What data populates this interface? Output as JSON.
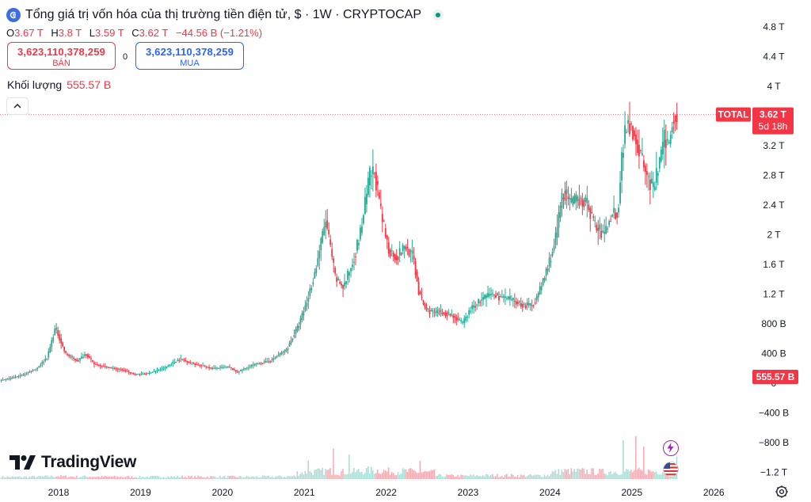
{
  "header": {
    "title": "Tổng giá trị vốn hóa của thị trường tiền điện tử, $ · 1W · CRYPTOCAP",
    "status_color": "#089981"
  },
  "ohlc": {
    "o_label": "O",
    "o_value": "3.67 T",
    "h_label": "H",
    "h_value": "3.8 T",
    "l_label": "L",
    "l_value": "3.59 T",
    "c_label": "C",
    "c_value": "3.62 T",
    "change": "−44.56 B (−1.21%)"
  },
  "trade": {
    "sell_value": "3,623,110,378,259",
    "sell_label": "BÁN",
    "spread": "0",
    "buy_value": "3,623,110,378,259",
    "buy_label": "MUA"
  },
  "volume": {
    "label": "Khối lượng",
    "value": "555.57 B"
  },
  "brand": {
    "name": "TradingView"
  },
  "colors": {
    "up": "#22ab94",
    "down": "#f23645",
    "vol_up": "#a7dcd3",
    "vol_down": "#f7a9b1",
    "last_tag": "#f23645"
  },
  "chart_data": {
    "type": "candlestick",
    "series_name": "TOTAL",
    "last_price_label": "3.62 T",
    "countdown": "5d 18h",
    "volume_tag": "555.57 B",
    "price_axis_ticks": [
      "4.8 T",
      "4.4 T",
      "4 T",
      "3.6 T",
      "3.2 T",
      "2.8 T",
      "2.4 T",
      "2 T",
      "1.6 T",
      "1.2 T",
      "800 B",
      "400 B",
      "0",
      "−400 B",
      "−800 B",
      "−1.2 T"
    ],
    "price_axis_values": [
      4.8,
      4.4,
      4.0,
      3.6,
      3.2,
      2.8,
      2.4,
      2.0,
      1.6,
      1.2,
      0.8,
      0.4,
      0,
      -0.4,
      -0.8,
      -1.2
    ],
    "x_ticks": [
      "2018",
      "2019",
      "2020",
      "2021",
      "2022",
      "2023",
      "2024",
      "2025",
      "2026"
    ],
    "x_tick_values": [
      2018,
      2019,
      2020,
      2021,
      2022,
      2023,
      2024,
      2025,
      2026
    ],
    "x_range": [
      2017.3,
      2026.6
    ],
    "y_range_trillions": [
      -1.25,
      4.9
    ],
    "close_path_trillions": [
      [
        2017.3,
        0.04
      ],
      [
        2017.45,
        0.07
      ],
      [
        2017.6,
        0.12
      ],
      [
        2017.75,
        0.2
      ],
      [
        2017.88,
        0.35
      ],
      [
        2017.98,
        0.75
      ],
      [
        2018.05,
        0.55
      ],
      [
        2018.1,
        0.4
      ],
      [
        2018.25,
        0.3
      ],
      [
        2018.35,
        0.4
      ],
      [
        2018.45,
        0.26
      ],
      [
        2018.6,
        0.22
      ],
      [
        2018.8,
        0.18
      ],
      [
        2018.95,
        0.12
      ],
      [
        2019.1,
        0.13
      ],
      [
        2019.3,
        0.2
      ],
      [
        2019.5,
        0.33
      ],
      [
        2019.7,
        0.25
      ],
      [
        2019.9,
        0.2
      ],
      [
        2020.1,
        0.22
      ],
      [
        2020.2,
        0.15
      ],
      [
        2020.4,
        0.25
      ],
      [
        2020.6,
        0.3
      ],
      [
        2020.8,
        0.45
      ],
      [
        2020.95,
        0.78
      ],
      [
        2021.05,
        1.1
      ],
      [
        2021.15,
        1.5
      ],
      [
        2021.28,
        2.2
      ],
      [
        2021.4,
        1.4
      ],
      [
        2021.5,
        1.3
      ],
      [
        2021.6,
        1.6
      ],
      [
        2021.7,
        2.0
      ],
      [
        2021.82,
        2.8
      ],
      [
        2021.88,
        2.85
      ],
      [
        2021.95,
        2.3
      ],
      [
        2022.05,
        1.8
      ],
      [
        2022.15,
        1.7
      ],
      [
        2022.25,
        1.85
      ],
      [
        2022.35,
        1.7
      ],
      [
        2022.42,
        1.2
      ],
      [
        2022.5,
        1.0
      ],
      [
        2022.6,
        0.95
      ],
      [
        2022.75,
        0.95
      ],
      [
        2022.85,
        0.9
      ],
      [
        2022.95,
        0.8
      ],
      [
        2023.05,
        1.0
      ],
      [
        2023.15,
        1.1
      ],
      [
        2023.3,
        1.2
      ],
      [
        2023.45,
        1.15
      ],
      [
        2023.6,
        1.1
      ],
      [
        2023.7,
        1.05
      ],
      [
        2023.8,
        1.05
      ],
      [
        2023.88,
        1.2
      ],
      [
        2024.0,
        1.6
      ],
      [
        2024.08,
        1.9
      ],
      [
        2024.18,
        2.6
      ],
      [
        2024.28,
        2.4
      ],
      [
        2024.38,
        2.5
      ],
      [
        2024.48,
        2.4
      ],
      [
        2024.58,
        2.1
      ],
      [
        2024.68,
        2.0
      ],
      [
        2024.78,
        2.3
      ],
      [
        2024.85,
        2.3
      ],
      [
        2024.9,
        3.1
      ],
      [
        2024.95,
        3.5
      ],
      [
        2025.0,
        3.5
      ],
      [
        2025.05,
        3.35
      ],
      [
        2025.12,
        3.1
      ],
      [
        2025.2,
        2.8
      ],
      [
        2025.28,
        2.6
      ],
      [
        2025.36,
        3.0
      ],
      [
        2025.42,
        3.3
      ],
      [
        2025.47,
        3.2
      ],
      [
        2025.52,
        3.6
      ],
      [
        2025.55,
        3.62
      ]
    ],
    "volume_peaks_trillions": [
      [
        2021.05,
        0.45
      ],
      [
        2021.35,
        0.75
      ],
      [
        2021.55,
        0.6
      ],
      [
        2022.42,
        0.45
      ],
      [
        2024.9,
        0.95
      ],
      [
        2025.05,
        1.05
      ],
      [
        2025.15,
        0.8
      ],
      [
        2025.55,
        0.55
      ]
    ]
  }
}
